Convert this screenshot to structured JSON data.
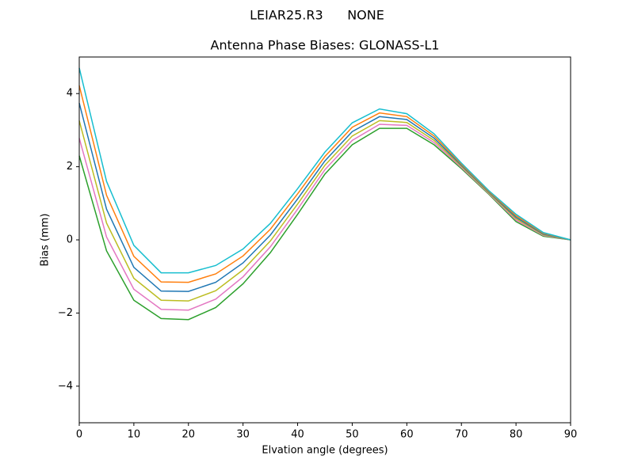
{
  "chart_data": {
    "type": "line",
    "suptitle": "LEIAR25.R3      NONE",
    "title": "Antenna Phase Biases: GLONASS-L1",
    "xlabel": "Elvation angle (degrees)",
    "ylabel": "Bias (mm)",
    "x": [
      0,
      5,
      10,
      15,
      20,
      25,
      30,
      35,
      40,
      45,
      50,
      55,
      60,
      65,
      70,
      75,
      80,
      85,
      90
    ],
    "xlim": [
      0,
      90
    ],
    "xticks": [
      0,
      10,
      20,
      30,
      40,
      50,
      60,
      70,
      80,
      90
    ],
    "ylim": [
      -5,
      5
    ],
    "yticks": [
      {
        "value": -4,
        "label": "−4"
      },
      {
        "value": -2,
        "label": "−2"
      },
      0,
      2,
      4
    ],
    "series": [
      {
        "color": "#2ca02c",
        "values": [
          2.3,
          -0.3,
          -1.65,
          -2.15,
          -2.18,
          -1.85,
          -1.2,
          -0.35,
          0.7,
          1.8,
          2.6,
          3.05,
          3.05,
          2.6,
          1.95,
          1.25,
          0.5,
          0.1,
          0
        ]
      },
      {
        "color": "#e377c2",
        "values": [
          2.78,
          0.08,
          -1.35,
          -1.9,
          -1.92,
          -1.62,
          -1.01,
          -0.19,
          0.84,
          1.92,
          2.72,
          3.16,
          3.13,
          2.66,
          1.98,
          1.27,
          0.54,
          0.12,
          0
        ]
      },
      {
        "color": "#bcbd22",
        "values": [
          3.26,
          0.46,
          -1.05,
          -1.65,
          -1.67,
          -1.39,
          -0.82,
          -0.03,
          0.98,
          2.04,
          2.84,
          3.26,
          3.21,
          2.72,
          2.01,
          1.29,
          0.58,
          0.14,
          0
        ]
      },
      {
        "color": "#1f77b4",
        "values": [
          3.74,
          0.84,
          -0.75,
          -1.4,
          -1.41,
          -1.16,
          -0.63,
          0.13,
          1.12,
          2.16,
          2.96,
          3.37,
          3.29,
          2.78,
          2.04,
          1.31,
          0.62,
          0.16,
          0
        ]
      },
      {
        "color": "#ff7f0e",
        "values": [
          4.22,
          1.22,
          -0.45,
          -1.15,
          -1.16,
          -0.93,
          -0.44,
          0.29,
          1.26,
          2.28,
          3.08,
          3.47,
          3.37,
          2.84,
          2.07,
          1.33,
          0.66,
          0.18,
          0
        ]
      },
      {
        "color": "#17becf",
        "values": [
          4.7,
          1.6,
          -0.15,
          -0.9,
          -0.9,
          -0.7,
          -0.25,
          0.45,
          1.4,
          2.4,
          3.2,
          3.58,
          3.45,
          2.9,
          2.1,
          1.35,
          0.7,
          0.2,
          0
        ]
      }
    ]
  }
}
